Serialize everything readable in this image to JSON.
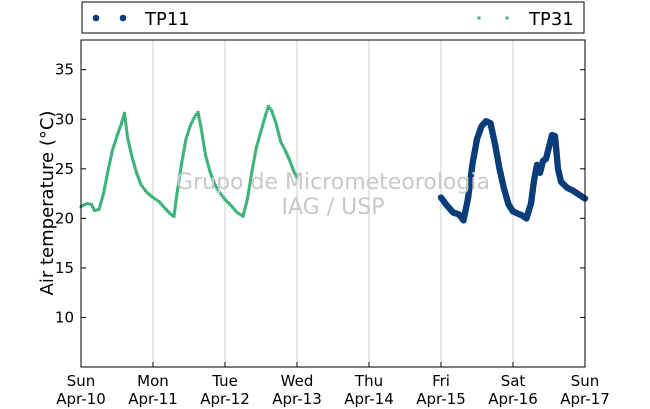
{
  "chart_data": {
    "type": "scatter",
    "title": "",
    "xlabel": "",
    "ylabel": "Air temperature (°C)",
    "ylim": [
      5,
      38
    ],
    "yticks": [
      10,
      15,
      20,
      25,
      30,
      35
    ],
    "xlim": [
      "2017-04-10 00:00",
      "2017-04-17 00:00"
    ],
    "x_ticks": [
      {
        "day": "Sun",
        "date": "Apr-10"
      },
      {
        "day": "Mon",
        "date": "Apr-11"
      },
      {
        "day": "Tue",
        "date": "Apr-12"
      },
      {
        "day": "Wed",
        "date": "Apr-13"
      },
      {
        "day": "Thu",
        "date": "Apr-14"
      },
      {
        "day": "Fri",
        "date": "Apr-15"
      },
      {
        "day": "Sat",
        "date": "Apr-16"
      },
      {
        "day": "Sun",
        "date": "Apr-17"
      }
    ],
    "grid": "vertical",
    "legend_position": "top",
    "watermark": [
      "Grupo de Micrometeorologia",
      "IAG / USP"
    ],
    "series": [
      {
        "name": "TP11",
        "color": "#0b3d7a",
        "marker": "circle",
        "points": [
          [
            "2017-04-15 00:00",
            22.1
          ],
          [
            "2017-04-15 02:00",
            21.3
          ],
          [
            "2017-04-15 04:00",
            20.6
          ],
          [
            "2017-04-15 06:00",
            20.4
          ],
          [
            "2017-04-15 07:30",
            19.8
          ],
          [
            "2017-04-15 09:00",
            22.0
          ],
          [
            "2017-04-15 10:30",
            25.5
          ],
          [
            "2017-04-15 12:00",
            28.0
          ],
          [
            "2017-04-15 13:30",
            29.3
          ],
          [
            "2017-04-15 15:00",
            29.8
          ],
          [
            "2017-04-15 16:30",
            29.6
          ],
          [
            "2017-04-15 18:00",
            27.5
          ],
          [
            "2017-04-15 19:30",
            25.0
          ],
          [
            "2017-04-15 21:00",
            23.0
          ],
          [
            "2017-04-15 22:30",
            21.4
          ],
          [
            "2017-04-16 00:00",
            20.7
          ],
          [
            "2017-04-16 01:30",
            20.5
          ],
          [
            "2017-04-16 03:00",
            20.3
          ],
          [
            "2017-04-16 04:30",
            20.0
          ],
          [
            "2017-04-16 06:00",
            21.5
          ],
          [
            "2017-04-16 07:00",
            23.8
          ],
          [
            "2017-04-16 08:00",
            25.4
          ],
          [
            "2017-04-16 09:00",
            24.6
          ],
          [
            "2017-04-16 10:00",
            25.8
          ],
          [
            "2017-04-16 11:00",
            26.0
          ],
          [
            "2017-04-16 12:00",
            27.2
          ],
          [
            "2017-04-16 13:00",
            28.4
          ],
          [
            "2017-04-16 14:00",
            28.3
          ],
          [
            "2017-04-16 15:00",
            25.0
          ],
          [
            "2017-04-16 16:00",
            23.7
          ],
          [
            "2017-04-16 18:00",
            23.1
          ],
          [
            "2017-04-16 20:00",
            22.8
          ],
          [
            "2017-04-16 22:00",
            22.4
          ],
          [
            "2017-04-17 00:00",
            22.0
          ]
        ]
      },
      {
        "name": "TP31",
        "color": "#3db37a",
        "marker": "square",
        "points": [
          [
            "2017-04-10 00:00",
            21.2
          ],
          [
            "2017-04-10 02:00",
            21.5
          ],
          [
            "2017-04-10 03:30",
            21.4
          ],
          [
            "2017-04-10 04:30",
            20.8
          ],
          [
            "2017-04-10 06:00",
            20.9
          ],
          [
            "2017-04-10 07:30",
            22.5
          ],
          [
            "2017-04-10 09:00",
            24.8
          ],
          [
            "2017-04-10 10:30",
            26.9
          ],
          [
            "2017-04-10 12:00",
            28.3
          ],
          [
            "2017-04-10 13:30",
            29.6
          ],
          [
            "2017-04-10 14:30",
            30.6
          ],
          [
            "2017-04-10 15:30",
            28.2
          ],
          [
            "2017-04-10 17:00",
            26.2
          ],
          [
            "2017-04-10 18:30",
            24.6
          ],
          [
            "2017-04-10 20:00",
            23.4
          ],
          [
            "2017-04-10 22:00",
            22.6
          ],
          [
            "2017-04-11 00:00",
            22.1
          ],
          [
            "2017-04-11 02:00",
            21.7
          ],
          [
            "2017-04-11 04:00",
            21.0
          ],
          [
            "2017-04-11 06:00",
            20.4
          ],
          [
            "2017-04-11 07:00",
            20.2
          ],
          [
            "2017-04-11 08:00",
            22.5
          ],
          [
            "2017-04-11 09:30",
            25.5
          ],
          [
            "2017-04-11 11:00",
            28.0
          ],
          [
            "2017-04-11 12:30",
            29.4
          ],
          [
            "2017-04-11 14:00",
            30.3
          ],
          [
            "2017-04-11 15:00",
            30.7
          ],
          [
            "2017-04-11 16:00",
            29.2
          ],
          [
            "2017-04-11 17:30",
            26.4
          ],
          [
            "2017-04-11 19:00",
            24.7
          ],
          [
            "2017-04-11 20:30",
            23.5
          ],
          [
            "2017-04-11 22:00",
            22.7
          ],
          [
            "2017-04-12 00:00",
            21.9
          ],
          [
            "2017-04-12 02:00",
            21.3
          ],
          [
            "2017-04-12 04:00",
            20.6
          ],
          [
            "2017-04-12 06:00",
            20.2
          ],
          [
            "2017-04-12 07:30",
            22.0
          ],
          [
            "2017-04-12 09:00",
            24.8
          ],
          [
            "2017-04-12 10:30",
            27.2
          ],
          [
            "2017-04-12 12:00",
            28.8
          ],
          [
            "2017-04-12 13:30",
            30.4
          ],
          [
            "2017-04-12 14:30",
            31.3
          ],
          [
            "2017-04-12 15:30",
            30.9
          ],
          [
            "2017-04-12 17:00",
            29.6
          ],
          [
            "2017-04-12 18:30",
            27.8
          ],
          [
            "2017-04-12 20:00",
            26.9
          ],
          [
            "2017-04-12 21:30",
            25.9
          ],
          [
            "2017-04-12 23:00",
            24.7
          ],
          [
            "2017-04-13 00:00",
            24.1
          ]
        ]
      }
    ]
  }
}
